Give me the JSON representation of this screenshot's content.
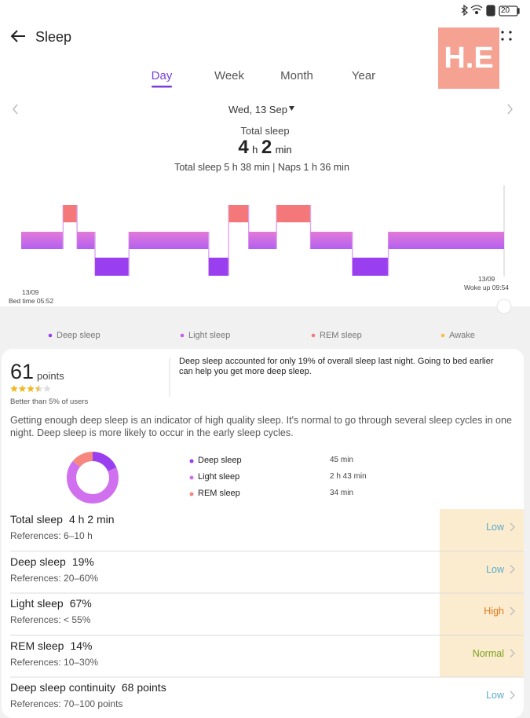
{
  "status_bar": {
    "battery": "20"
  },
  "header": {
    "title": "Sleep",
    "watermark": "H.E"
  },
  "tabs": {
    "items": [
      "Day",
      "Week",
      "Month",
      "Year"
    ],
    "selected": 0
  },
  "date": "Wed, 13 Sep",
  "summary": {
    "label": "Total sleep",
    "hours": 4,
    "hours_unit": "h",
    "minutes": 2,
    "minutes_unit": "min",
    "detail": "Total sleep 5 h 38 min | Naps 1 h 36 min"
  },
  "hypnogram": {
    "start_date": "13/09",
    "start_time": "Bed time 05:52",
    "end_date": "13/09",
    "end_time": "Woke up 09:54",
    "segments": [
      {
        "stage": 1,
        "minutes": 21
      },
      {
        "stage": 2,
        "minutes": 7
      },
      {
        "stage": 1,
        "minutes": 9
      },
      {
        "stage": 0,
        "minutes": 17
      },
      {
        "stage": 1,
        "minutes": 40
      },
      {
        "stage": 0,
        "minutes": 10
      },
      {
        "stage": 2,
        "minutes": 10
      },
      {
        "stage": 1,
        "minutes": 14
      },
      {
        "stage": 2,
        "minutes": 17
      },
      {
        "stage": 1,
        "minutes": 21
      },
      {
        "stage": 0,
        "minutes": 18
      },
      {
        "stage": 1,
        "minutes": 58
      }
    ]
  },
  "legend": [
    {
      "name": "Deep sleep",
      "color": "#9a3ff0"
    },
    {
      "name": "Light sleep",
      "color": "#c65ee6"
    },
    {
      "name": "REM sleep",
      "color": "#f4787a"
    },
    {
      "name": "Awake",
      "color": "#f5c042"
    }
  ],
  "score": {
    "points": 61,
    "unit": "points",
    "rating": 3.5,
    "rating_max": 5,
    "rank": "Better than 5% of users",
    "advice": "Deep sleep accounted for only 19% of overall sleep last night. Going to bed earlier can help you get more deep sleep."
  },
  "description": "Getting enough deep sleep is an indicator of high quality sleep. It's normal to go through several sleep cycles in one night. Deep sleep is more likely to occur in the early sleep cycles.",
  "breakdown": [
    {
      "name": "Deep sleep",
      "color": "#9a3ff0",
      "value": 45,
      "value_label": "45 min"
    },
    {
      "name": "Light sleep",
      "color": "#d070ee",
      "value": 163,
      "value_label": "2 h 43 min"
    },
    {
      "name": "REM sleep",
      "color": "#f5877f",
      "value": 34,
      "value_label": "34 min"
    }
  ],
  "metrics": [
    {
      "name": "Total sleep",
      "value": "4 h 2 min",
      "reference": "References: 6–10 h",
      "status": "Low",
      "status_color": "#5aaac8",
      "highlight": true
    },
    {
      "name": "Deep sleep",
      "value": "19%",
      "reference": "References: 20–60%",
      "status": "Low",
      "status_color": "#5aaac8",
      "highlight": true
    },
    {
      "name": "Light sleep",
      "value": "67%",
      "reference": "References: < 55%",
      "status": "High",
      "status_color": "#e2781c",
      "highlight": true
    },
    {
      "name": "REM sleep",
      "value": "14%",
      "reference": "References: 10–30%",
      "status": "Normal",
      "status_color": "#7ba21c",
      "highlight": true
    },
    {
      "name": "Deep sleep continuity",
      "value": "68 points",
      "reference": "References: 70–100 points",
      "status": "Low",
      "status_color": "#5aaac8",
      "highlight": false
    }
  ]
}
